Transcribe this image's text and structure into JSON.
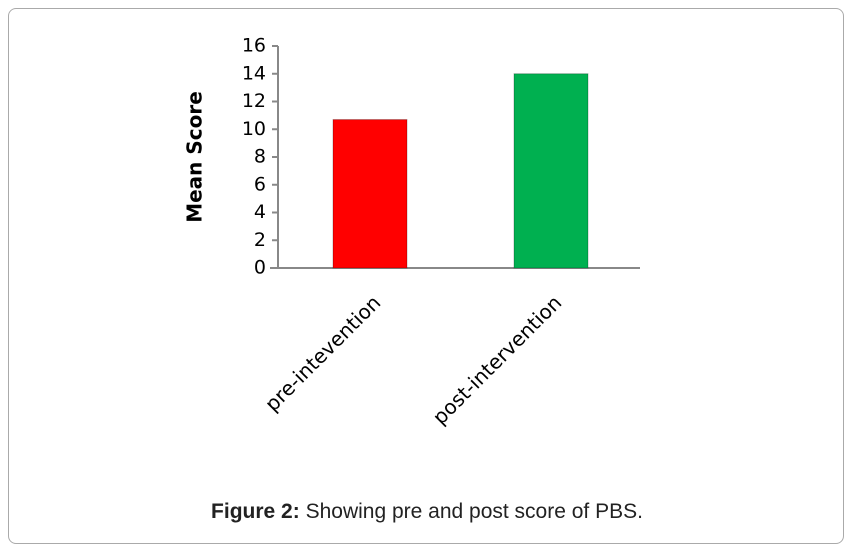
{
  "chart_data": {
    "type": "bar",
    "ylabel": "Mean Score",
    "categories": [
      "pre-intevention",
      "post-intervention"
    ],
    "values": [
      10.7,
      14
    ],
    "colors": [
      "#ff0000",
      "#00b050"
    ],
    "ylim": [
      0,
      16
    ],
    "yticks": [
      0,
      2,
      4,
      6,
      8,
      10,
      12,
      14,
      16
    ]
  },
  "caption": {
    "label": "Figure 2:",
    "text": "Showing pre and post score of PBS."
  }
}
